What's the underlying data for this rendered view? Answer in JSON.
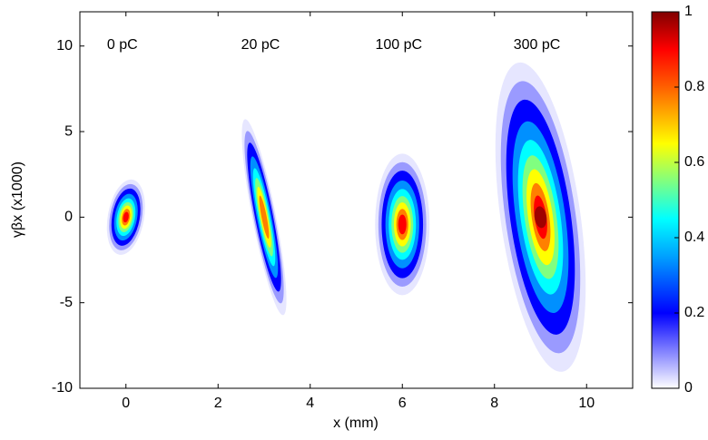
{
  "chart_data": {
    "type": "density",
    "xlabel": "x (mm)",
    "ylabel": "γβx (x1000)",
    "categories": [
      "0 pC",
      "20 pC",
      "100 pC",
      "300 pC"
    ],
    "x": [
      0,
      3,
      6,
      9
    ],
    "y": [
      0,
      0,
      0,
      0
    ],
    "xlim": [
      -1,
      11
    ],
    "xticks": [
      0,
      2,
      4,
      6,
      8,
      10
    ],
    "ylim": [
      -10,
      12
    ],
    "yticks": [
      -10,
      -5,
      0,
      5,
      10
    ],
    "colorbar_lim": [
      0,
      1
    ],
    "colorbar_ticks": [
      0,
      0.2,
      0.4,
      0.6,
      0.8,
      1
    ]
  }
}
